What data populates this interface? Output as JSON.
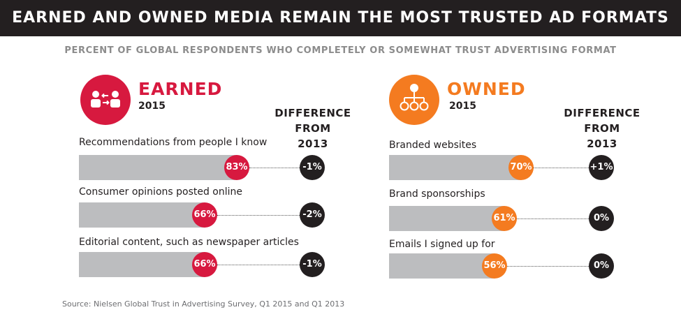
{
  "title": "EARNED AND OWNED MEDIA REMAIN THE MOST TRUSTED AD FORMATS",
  "subtitle": "PERCENT OF GLOBAL RESPONDENTS WHO COMPLETELY OR SOMEWHAT TRUST ADVERTISING FORMAT",
  "source": "Source: Nielsen Global Trust in Advertising Survey, Q1 2015 and Q1 2013",
  "colors": {
    "earned": "#d7193f",
    "owned": "#f47b20",
    "bar_track": "#bcbdbf",
    "diff": "#231f20"
  },
  "chart_data": [
    {
      "type": "bar",
      "title": "EARNED",
      "year": "2015",
      "difference_header": [
        "DIFFERENCE",
        "FROM",
        "2013"
      ],
      "icon": "people-exchange-icon",
      "categories": [
        "Recommendations from people I know",
        "Consumer opinions posted online",
        "Editorial content, such as newspaper articles"
      ],
      "values": [
        83,
        66,
        66
      ],
      "value_labels": [
        "83%",
        "66%",
        "66%"
      ],
      "difference_labels": [
        "-1%",
        "-2%",
        "-1%"
      ],
      "ylim": [
        0,
        100
      ]
    },
    {
      "type": "bar",
      "title": "OWNED",
      "year": "2015",
      "difference_header": [
        "DIFFERENCE",
        "FROM",
        "2013"
      ],
      "icon": "org-chart-icon",
      "categories": [
        "Branded websites",
        "Brand sponsorships",
        "Emails I signed up for"
      ],
      "values": [
        70,
        61,
        56
      ],
      "value_labels": [
        "70%",
        "61%",
        "56%"
      ],
      "difference_labels": [
        "+1%",
        "0%",
        "0%"
      ],
      "ylim": [
        0,
        100
      ]
    }
  ]
}
